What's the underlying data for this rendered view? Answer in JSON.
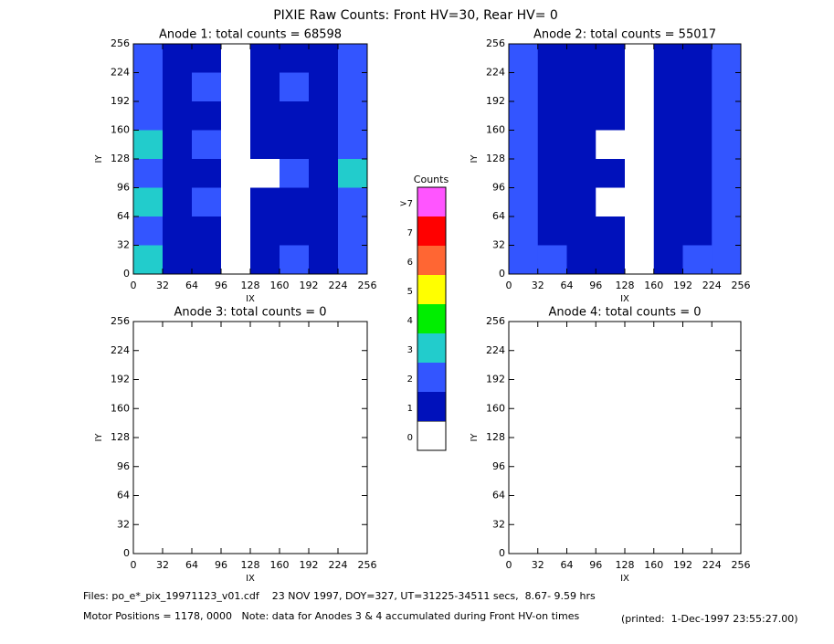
{
  "title": "PIXIE Raw Counts:  Front HV=30, Rear HV= 0",
  "chart_data": [
    {
      "type": "heatmap",
      "title": "Anode 1: total counts = 68598",
      "x_label": "IX",
      "y_label": "IY",
      "xlim": [
        0,
        256
      ],
      "ylim": [
        0,
        256
      ],
      "xticks": [
        0,
        32,
        64,
        96,
        128,
        160,
        192,
        224,
        256
      ],
      "yticks": [
        0,
        32,
        64,
        96,
        128,
        160,
        192,
        224,
        256
      ],
      "z": [
        [
          2,
          1,
          1,
          0,
          1,
          1,
          1,
          2
        ],
        [
          2,
          1,
          2,
          0,
          1,
          2,
          1,
          2
        ],
        [
          2,
          1,
          1,
          0,
          1,
          1,
          1,
          2
        ],
        [
          3,
          1,
          2,
          0,
          1,
          1,
          1,
          2
        ],
        [
          2,
          1,
          1,
          0,
          0,
          2,
          1,
          3
        ],
        [
          3,
          1,
          2,
          0,
          1,
          1,
          1,
          2
        ],
        [
          2,
          1,
          1,
          0,
          1,
          1,
          1,
          2
        ],
        [
          3,
          1,
          1,
          0,
          1,
          2,
          1,
          2
        ]
      ]
    },
    {
      "type": "heatmap",
      "title": "Anode 2: total counts = 55017",
      "x_label": "IX",
      "y_label": "IY",
      "xlim": [
        0,
        256
      ],
      "ylim": [
        0,
        256
      ],
      "xticks": [
        0,
        32,
        64,
        96,
        128,
        160,
        192,
        224,
        256
      ],
      "yticks": [
        0,
        32,
        64,
        96,
        128,
        160,
        192,
        224,
        256
      ],
      "z": [
        [
          2,
          1,
          1,
          1,
          0,
          1,
          1,
          2
        ],
        [
          2,
          1,
          1,
          1,
          0,
          1,
          1,
          2
        ],
        [
          2,
          1,
          1,
          1,
          0,
          1,
          1,
          2
        ],
        [
          2,
          1,
          1,
          0,
          0,
          1,
          1,
          2
        ],
        [
          2,
          1,
          1,
          1,
          0,
          1,
          1,
          2
        ],
        [
          2,
          1,
          1,
          0,
          0,
          1,
          1,
          2
        ],
        [
          2,
          1,
          1,
          1,
          0,
          1,
          1,
          2
        ],
        [
          2,
          2,
          1,
          1,
          0,
          1,
          2,
          2
        ]
      ]
    },
    {
      "type": "heatmap",
      "title": "Anode 3: total counts = 0",
      "x_label": "IX",
      "y_label": "IY",
      "xlim": [
        0,
        256
      ],
      "ylim": [
        0,
        256
      ],
      "xticks": [
        0,
        32,
        64,
        96,
        128,
        160,
        192,
        224,
        256
      ],
      "yticks": [
        0,
        32,
        64,
        96,
        128,
        160,
        192,
        224,
        256
      ]
    },
    {
      "type": "heatmap",
      "title": "Anode 4: total counts = 0",
      "x_label": "IX",
      "y_label": "IY",
      "xlim": [
        0,
        256
      ],
      "ylim": [
        0,
        256
      ],
      "xticks": [
        0,
        32,
        64,
        96,
        128,
        160,
        192,
        224,
        256
      ],
      "yticks": [
        0,
        32,
        64,
        96,
        128,
        160,
        192,
        224,
        256
      ]
    }
  ],
  "colorbar": {
    "title": "Counts",
    "labels": [
      "0",
      "1",
      "2",
      "3",
      "4",
      "5",
      "6",
      "7",
      ">7"
    ],
    "colors": [
      "#ffffff",
      "#0011bb",
      "#3355ff",
      "#22cccc",
      "#00ee00",
      "#ffff00",
      "#ff6633",
      "#ff0000",
      "#ff55ff"
    ]
  },
  "footer": [
    "Files: po_e*_pix_19971123_v01.cdf    23 NOV 1997, DOY=327, UT=31225-34511 secs,  8.67- 9.59 hrs",
    "Motor Positions = 1178, 0000   Note: data for Anodes 3 & 4 accumulated during Front HV-on times",
    "(printed:  1-Dec-1997 23:55:27.00)"
  ]
}
